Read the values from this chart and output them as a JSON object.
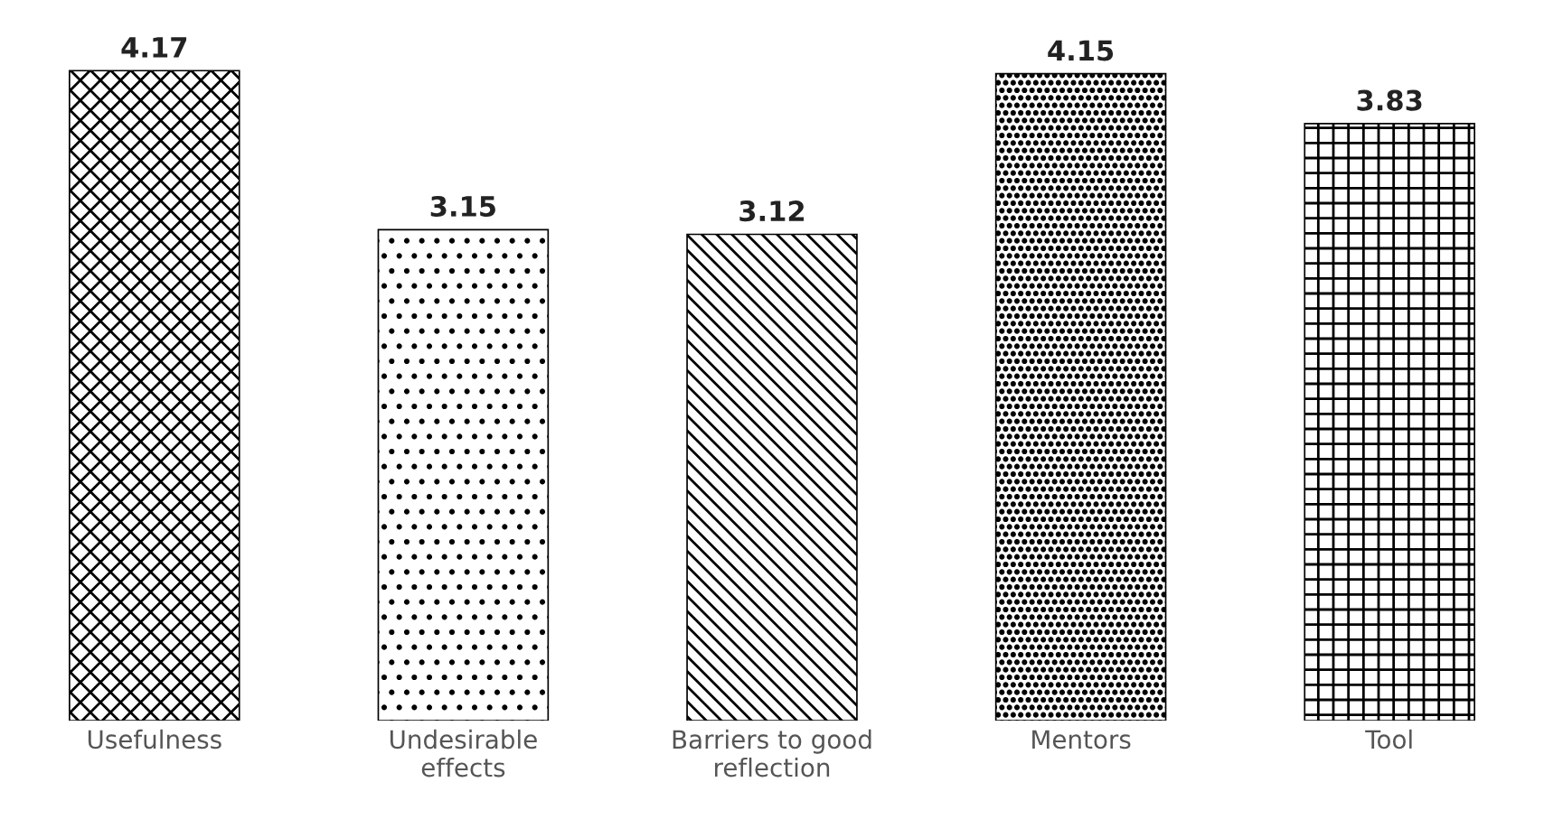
{
  "chart_data": {
    "type": "bar",
    "categories": [
      "Usefulness",
      "Undesirable\neffects",
      "Barriers to good\nreflection",
      "Mentors",
      "Tool"
    ],
    "values": [
      4.17,
      3.15,
      3.12,
      4.15,
      3.83
    ],
    "color": "#000000",
    "data_labels": true,
    "grid": false,
    "legend": false
  }
}
